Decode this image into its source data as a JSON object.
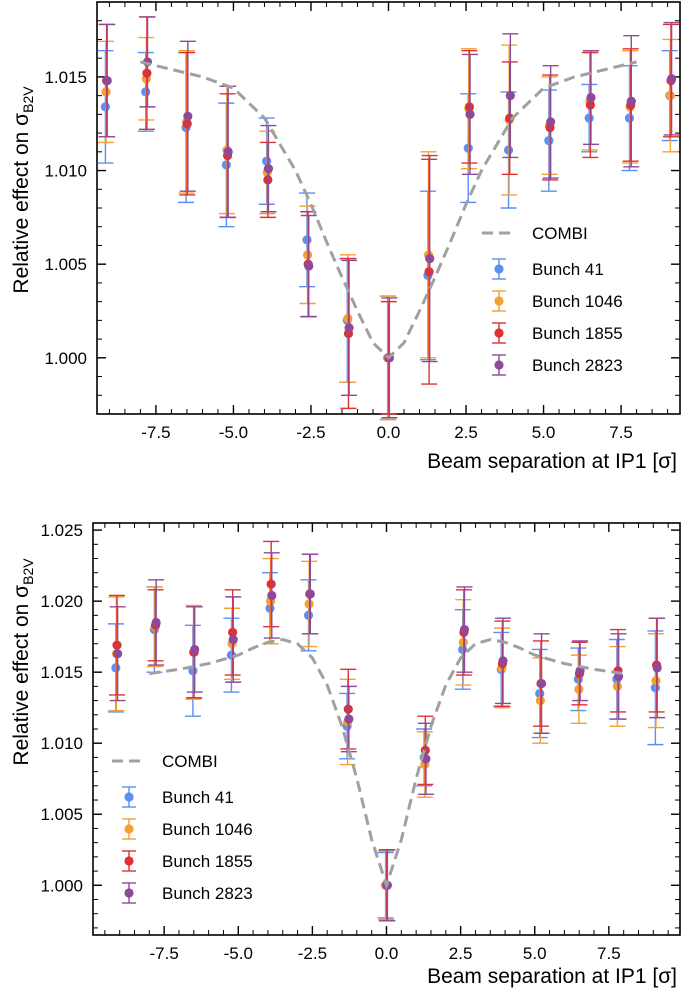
{
  "chart_data": [
    {
      "type": "scatter",
      "title": "",
      "xlabel": "Beam separation at IP1 [σ]",
      "ylabel": "Relative effect on σ",
      "ylabel_sub": "B2V",
      "xlim": [
        -9.4,
        9.4
      ],
      "ylim": [
        0.997,
        1.019
      ],
      "xticks": [
        -7.5,
        -5.0,
        -2.5,
        0.0,
        2.5,
        5.0,
        7.5
      ],
      "xtick_labels": [
        "-7.5",
        "-5.0",
        "-2.5",
        "0.0",
        "2.5",
        "5.0",
        "7.5"
      ],
      "yticks": [
        1.0,
        1.005,
        1.01,
        1.015
      ],
      "ytick_labels": [
        "1.000",
        "1.005",
        "1.010",
        "1.015"
      ],
      "legend_position": "lower-right",
      "combi": {
        "name": "COMBI",
        "color": "#a0a0a0",
        "x": [
          -8.0,
          -7.0,
          -6.0,
          -5.0,
          -4.0,
          -3.0,
          -2.5,
          -2.0,
          -1.5,
          -1.0,
          -0.5,
          0.0,
          0.5,
          1.0,
          1.5,
          2.0,
          2.5,
          3.0,
          4.0,
          5.0,
          6.0,
          7.0,
          8.0
        ],
        "y": [
          1.0158,
          1.0154,
          1.015,
          1.0144,
          1.0128,
          1.01,
          1.0082,
          1.0062,
          1.0043,
          1.0025,
          1.0008,
          1.0,
          1.0008,
          1.0025,
          1.0043,
          1.0062,
          1.0082,
          1.01,
          1.0128,
          1.0144,
          1.015,
          1.0154,
          1.0158
        ]
      },
      "x": [
        -9.1,
        -7.8,
        -6.5,
        -5.2,
        -3.9,
        -2.6,
        -1.3,
        0.0,
        1.3,
        2.6,
        3.9,
        5.2,
        6.5,
        7.8,
        9.1
      ],
      "series": [
        {
          "name": "Bunch 41",
          "color": "#5b8ff5",
          "values": [
            1.0134,
            1.0142,
            1.0123,
            1.0103,
            1.0105,
            1.0063,
            1.002,
            1.0,
            1.0044,
            1.0112,
            1.0111,
            1.0116,
            1.0128,
            1.0128,
            1.014
          ],
          "errors": [
            0.003,
            0.0021,
            0.004,
            0.0033,
            0.0023,
            0.0025,
            0.0033,
            0.0033,
            0.0045,
            0.0029,
            0.0031,
            0.0027,
            0.0018,
            0.0028,
            0.0024
          ]
        },
        {
          "name": "Bunch 1046",
          "color": "#f5a030",
          "values": [
            1.0142,
            1.0149,
            1.0126,
            1.0111,
            1.0099,
            1.0055,
            1.0021,
            1.0,
            1.0055,
            1.0133,
            1.0127,
            1.0124,
            1.0137,
            1.0134,
            1.014
          ],
          "errors": [
            0.0027,
            0.0022,
            0.0038,
            0.0034,
            0.0022,
            0.0026,
            0.0034,
            0.0033,
            0.0055,
            0.0032,
            0.004,
            0.0026,
            0.0026,
            0.003,
            0.003
          ]
        },
        {
          "name": "Bunch 1855",
          "color": "#e03030",
          "values": [
            1.0148,
            1.0152,
            1.0125,
            1.0108,
            1.0095,
            1.005,
            1.0013,
            1.0,
            1.0046,
            1.0134,
            1.0128,
            1.0123,
            1.0135,
            1.0135,
            1.0148
          ],
          "errors": [
            0.003,
            0.003,
            0.0038,
            0.0033,
            0.002,
            0.0028,
            0.004,
            0.003,
            0.006,
            0.003,
            0.003,
            0.0028,
            0.0028,
            0.003,
            0.003
          ]
        },
        {
          "name": "Bunch 2823",
          "color": "#8e4a99",
          "values": [
            1.0148,
            1.0158,
            1.0129,
            1.011,
            1.0101,
            1.0049,
            1.0016,
            1.0,
            1.0053,
            1.013,
            1.014,
            1.0126,
            1.0139,
            1.0137,
            1.0149
          ],
          "errors": [
            0.003,
            0.0024,
            0.004,
            0.0035,
            0.0023,
            0.0027,
            0.0036,
            0.0032,
            0.0055,
            0.0032,
            0.0033,
            0.003,
            0.0025,
            0.0035,
            0.003
          ]
        }
      ]
    },
    {
      "type": "scatter",
      "title": "",
      "xlabel": "Beam separation at IP1 [σ]",
      "ylabel": "Relative effect on σ",
      "ylabel_sub": "B2V",
      "xlim": [
        -9.9,
        9.9
      ],
      "ylim": [
        0.9965,
        1.0255
      ],
      "xticks": [
        -7.5,
        -5.0,
        -2.5,
        0.0,
        2.5,
        5.0,
        7.5
      ],
      "xtick_labels": [
        "-7.5",
        "-5.0",
        "-2.5",
        "0.0",
        "2.5",
        "5.0",
        "7.5"
      ],
      "yticks": [
        1.0,
        1.005,
        1.01,
        1.015,
        1.02,
        1.025
      ],
      "ytick_labels": [
        "1.000",
        "1.005",
        "1.010",
        "1.015",
        "1.020",
        "1.025"
      ],
      "legend_position": "lower-left",
      "combi": {
        "name": "COMBI",
        "color": "#a0a0a0",
        "x": [
          -8.0,
          -7.0,
          -6.0,
          -5.0,
          -4.5,
          -4.0,
          -3.5,
          -3.0,
          -2.5,
          -2.0,
          -1.5,
          -1.0,
          -0.5,
          0.0,
          0.5,
          1.0,
          1.5,
          2.0,
          2.5,
          3.0,
          3.5,
          4.0,
          4.5,
          5.0,
          6.0,
          7.0,
          8.0
        ],
        "y": [
          1.0149,
          1.0152,
          1.0156,
          1.0162,
          1.0167,
          1.0171,
          1.0173,
          1.017,
          1.016,
          1.0141,
          1.0112,
          1.0075,
          1.0032,
          1.0,
          1.0032,
          1.0075,
          1.0112,
          1.0141,
          1.016,
          1.017,
          1.0173,
          1.0171,
          1.0167,
          1.0162,
          1.0156,
          1.0152,
          1.0149
        ]
      },
      "x": [
        -9.1,
        -7.8,
        -6.5,
        -5.2,
        -3.9,
        -2.6,
        -1.3,
        0.0,
        1.3,
        2.6,
        3.9,
        5.2,
        6.5,
        7.8,
        9.1
      ],
      "series": [
        {
          "name": "Bunch 41",
          "color": "#5b8ff5",
          "values": [
            1.0153,
            1.018,
            1.0151,
            1.0162,
            1.0195,
            1.019,
            1.0112,
            1.0,
            1.009,
            1.0166,
            1.0152,
            1.0135,
            1.0145,
            1.0145,
            1.0139
          ],
          "errors": [
            0.0031,
            0.003,
            0.0032,
            0.0026,
            0.0025,
            0.0025,
            0.0023,
            0.0023,
            0.002,
            0.0028,
            0.0026,
            0.0031,
            0.0022,
            0.0028,
            0.004
          ]
        },
        {
          "name": "Bunch 1046",
          "color": "#f5a030",
          "values": [
            1.0163,
            1.0182,
            1.0164,
            1.017,
            1.02,
            1.0198,
            1.0115,
            1.0,
            1.0085,
            1.0171,
            1.0153,
            1.013,
            1.0138,
            1.014,
            1.0144
          ],
          "errors": [
            0.004,
            0.0028,
            0.0033,
            0.0025,
            0.003,
            0.003,
            0.003,
            0.0024,
            0.0023,
            0.003,
            0.0028,
            0.003,
            0.0024,
            0.0028,
            0.0033
          ]
        },
        {
          "name": "Bunch 1855",
          "color": "#e03030",
          "values": [
            1.0169,
            1.0183,
            1.0164,
            1.0178,
            1.0212,
            1.0205,
            1.0124,
            1.0,
            1.0095,
            1.0178,
            1.0156,
            1.0142,
            1.0149,
            1.0151,
            1.0155
          ],
          "errors": [
            0.0035,
            0.0025,
            0.0032,
            0.003,
            0.003,
            0.0028,
            0.0028,
            0.0025,
            0.0024,
            0.003,
            0.003,
            0.003,
            0.0022,
            0.0029,
            0.0033
          ]
        },
        {
          "name": "Bunch 2823",
          "color": "#8e4a99",
          "values": [
            1.0163,
            1.0185,
            1.0166,
            1.0173,
            1.0204,
            1.0205,
            1.0117,
            1.0,
            1.0089,
            1.018,
            1.0158,
            1.0142,
            1.0151,
            1.0147,
            1.0153
          ],
          "errors": [
            0.0033,
            0.003,
            0.003,
            0.003,
            0.003,
            0.0028,
            0.0023,
            0.0025,
            0.0025,
            0.003,
            0.003,
            0.0035,
            0.0021,
            0.003,
            0.0035
          ]
        }
      ]
    }
  ]
}
